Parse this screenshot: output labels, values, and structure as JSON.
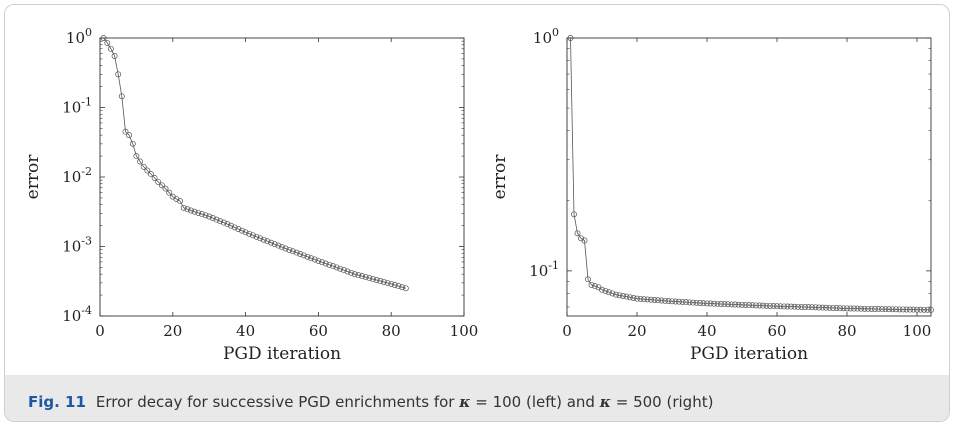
{
  "chart_data": [
    {
      "type": "line",
      "marker": "open-circle",
      "xlabel": "PGD iteration",
      "ylabel": "error",
      "yscale": "log",
      "xlim": [
        0,
        100
      ],
      "ylim": [
        0.0001,
        1
      ],
      "x_ticks": [
        "0",
        "20",
        "40",
        "60",
        "80",
        "100"
      ],
      "y_ticks": [
        {
          "base": "10",
          "exp": "0"
        },
        {
          "base": "10",
          "exp": "-1"
        },
        {
          "base": "10",
          "exp": "-2"
        },
        {
          "base": "10",
          "exp": "-3"
        },
        {
          "base": "10",
          "exp": "-4"
        }
      ],
      "series": [
        {
          "color": "#555555",
          "anchors": [
            [
              1,
              1.0
            ],
            [
              2,
              0.85
            ],
            [
              3,
              0.7
            ],
            [
              4,
              0.55
            ],
            [
              5,
              0.3
            ],
            [
              6,
              0.145
            ],
            [
              7,
              0.045
            ],
            [
              8,
              0.04
            ],
            [
              9,
              0.03
            ],
            [
              10,
              0.02
            ],
            [
              12,
              0.014
            ],
            [
              14,
              0.011
            ],
            [
              16,
              0.0085
            ],
            [
              18,
              0.0068
            ],
            [
              20,
              0.0052
            ],
            [
              22,
              0.0045
            ],
            [
              23,
              0.0036
            ],
            [
              25,
              0.0033
            ],
            [
              30,
              0.0027
            ],
            [
              35,
              0.0021
            ],
            [
              40,
              0.0016
            ],
            [
              45,
              0.00125
            ],
            [
              50,
              0.00098
            ],
            [
              55,
              0.00078
            ],
            [
              60,
              0.00062
            ],
            [
              65,
              0.0005
            ],
            [
              70,
              0.0004
            ],
            [
              75,
              0.00034
            ],
            [
              80,
              0.00029
            ],
            [
              84,
              0.00025
            ]
          ]
        }
      ]
    },
    {
      "type": "line",
      "marker": "open-circle",
      "xlabel": "PGD iteration",
      "ylabel": "error",
      "yscale": "log",
      "xlim": [
        0,
        104
      ],
      "ylim": [
        0.064,
        1
      ],
      "x_ticks": [
        "0",
        "20",
        "40",
        "60",
        "80",
        "100"
      ],
      "y_ticks": [
        {
          "base": "10",
          "exp": "0"
        },
        {
          "base": "10",
          "exp": "-1"
        }
      ],
      "series": [
        {
          "color": "#555555",
          "anchors": [
            [
              1,
              1.0
            ],
            [
              2,
              0.175
            ],
            [
              3,
              0.145
            ],
            [
              4,
              0.138
            ],
            [
              5,
              0.135
            ],
            [
              6,
              0.092
            ],
            [
              7,
              0.087
            ],
            [
              8,
              0.086
            ],
            [
              9,
              0.085
            ],
            [
              10,
              0.083
            ],
            [
              12,
              0.081
            ],
            [
              14,
              0.079
            ],
            [
              16,
              0.078
            ],
            [
              18,
              0.077
            ],
            [
              20,
              0.076
            ],
            [
              25,
              0.075
            ],
            [
              30,
              0.074
            ],
            [
              40,
              0.0725
            ],
            [
              50,
              0.0715
            ],
            [
              60,
              0.0705
            ],
            [
              70,
              0.0698
            ],
            [
              80,
              0.069
            ],
            [
              90,
              0.0685
            ],
            [
              104,
              0.068
            ]
          ]
        }
      ]
    }
  ],
  "caption": {
    "label": "Fig. 11",
    "text_1": "Error decay for successive PGD enrichments for ",
    "kappa_1": "κ",
    "text_2": " = 100 (left) and ",
    "kappa_2": "κ",
    "text_3": " = 500 (right)"
  }
}
